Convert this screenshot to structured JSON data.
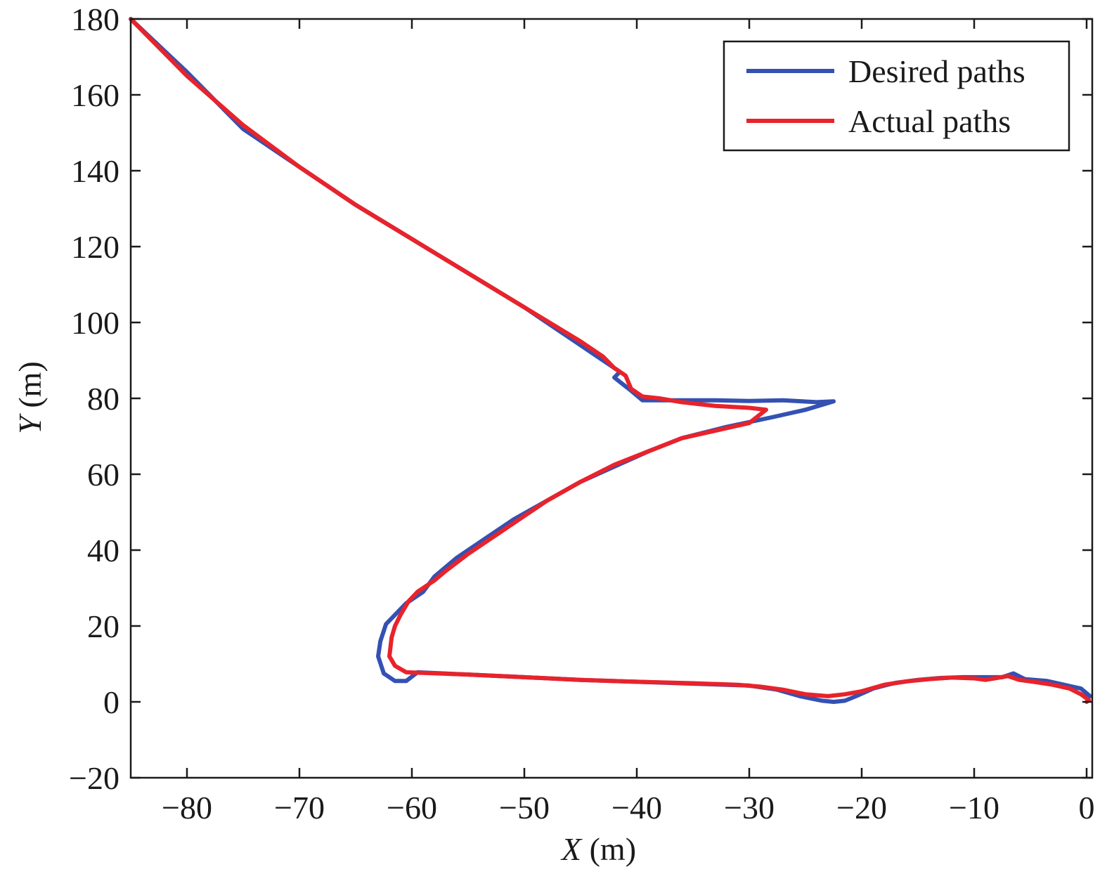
{
  "chart_data": {
    "type": "line",
    "xlabel": {
      "var": "X",
      "unit": " (m)"
    },
    "ylabel": {
      "var": "Y",
      "unit": " (m)"
    },
    "xlim": [
      -85,
      0.5
    ],
    "ylim": [
      -20,
      180
    ],
    "xticks": [
      -80,
      -70,
      -60,
      -50,
      -40,
      -30,
      -20,
      -10,
      0
    ],
    "yticks": [
      -20,
      0,
      20,
      40,
      60,
      80,
      100,
      120,
      140,
      160,
      180
    ],
    "xtick_labels": [
      "−80",
      "−70",
      "−60",
      "−50",
      "−40",
      "−30",
      "−20",
      "−10",
      "0"
    ],
    "ytick_labels": [
      "−20",
      "0",
      "20",
      "40",
      "60",
      "80",
      "100",
      "120",
      "140",
      "160",
      "180"
    ],
    "grid": false,
    "legend_position": "top-right",
    "series": [
      {
        "name": "Desired paths",
        "color": "#3451b2",
        "points": [
          [
            0.3,
            1.5
          ],
          [
            -0.5,
            3.5
          ],
          [
            -2,
            4.5
          ],
          [
            -3.5,
            5.5
          ],
          [
            -5.5,
            6.0
          ],
          [
            -6.5,
            7.5
          ],
          [
            -7.5,
            6.5
          ],
          [
            -9,
            6.5
          ],
          [
            -11,
            6.5
          ],
          [
            -13,
            6.3
          ],
          [
            -15,
            5.8
          ],
          [
            -17,
            5.0
          ],
          [
            -18,
            4.3
          ],
          [
            -19,
            3.5
          ],
          [
            -20.5,
            1.5
          ],
          [
            -21.5,
            0.3
          ],
          [
            -22.5,
            0
          ],
          [
            -23.5,
            0.3
          ],
          [
            -25.5,
            1.5
          ],
          [
            -27.5,
            3.2
          ],
          [
            -30,
            4.3
          ],
          [
            -35,
            4.8
          ],
          [
            -40,
            5.3
          ],
          [
            -45,
            5.8
          ],
          [
            -50,
            6.5
          ],
          [
            -55,
            7.2
          ],
          [
            -59.5,
            7.8
          ],
          [
            -60.5,
            5.5
          ],
          [
            -61.5,
            5.5
          ],
          [
            -62.5,
            7.5
          ],
          [
            -63,
            12
          ],
          [
            -62.8,
            16
          ],
          [
            -62.3,
            20.5
          ],
          [
            -60.5,
            26
          ],
          [
            -59,
            29
          ],
          [
            -58,
            33
          ],
          [
            -56,
            38
          ],
          [
            -54,
            42
          ],
          [
            -51,
            48
          ],
          [
            -48,
            53
          ],
          [
            -45,
            58
          ],
          [
            -42,
            62
          ],
          [
            -39,
            66
          ],
          [
            -36,
            69.5
          ],
          [
            -32,
            72.5
          ],
          [
            -28,
            75
          ],
          [
            -25,
            77
          ],
          [
            -22.5,
            79.2
          ],
          [
            -24,
            79
          ],
          [
            -27,
            79.5
          ],
          [
            -30,
            79.3
          ],
          [
            -33,
            79.5
          ],
          [
            -38,
            79.5
          ],
          [
            -39.5,
            79.5
          ],
          [
            -40.5,
            82
          ],
          [
            -42,
            85.5
          ],
          [
            -41.5,
            87
          ],
          [
            -42.5,
            89
          ],
          [
            -45,
            94
          ],
          [
            -50,
            104
          ],
          [
            -55,
            113
          ],
          [
            -60,
            122
          ],
          [
            -65,
            131
          ],
          [
            -70,
            141
          ],
          [
            -75,
            151
          ],
          [
            -80,
            166
          ],
          [
            -85,
            180
          ]
        ]
      },
      {
        "name": "Actual paths",
        "color": "#e8232b",
        "points": [
          [
            0,
            0
          ],
          [
            0.2,
            0.5
          ],
          [
            -0.5,
            2
          ],
          [
            -1.5,
            3.5
          ],
          [
            -3,
            4.5
          ],
          [
            -4.5,
            5.2
          ],
          [
            -6,
            5.8
          ],
          [
            -7,
            6.8
          ],
          [
            -8,
            6.3
          ],
          [
            -9,
            5.8
          ],
          [
            -10,
            6.2
          ],
          [
            -12,
            6.4
          ],
          [
            -14,
            6.0
          ],
          [
            -16,
            5.4
          ],
          [
            -18,
            4.5
          ],
          [
            -20,
            2.8
          ],
          [
            -21.5,
            2.0
          ],
          [
            -23,
            1.5
          ],
          [
            -25,
            2.0
          ],
          [
            -27,
            3.2
          ],
          [
            -29,
            4.0
          ],
          [
            -31,
            4.5
          ],
          [
            -35,
            4.9
          ],
          [
            -40,
            5.3
          ],
          [
            -45,
            5.8
          ],
          [
            -50,
            6.5
          ],
          [
            -55,
            7.2
          ],
          [
            -60.5,
            7.8
          ],
          [
            -61.5,
            9.5
          ],
          [
            -62,
            12
          ],
          [
            -61.8,
            17
          ],
          [
            -61.5,
            20
          ],
          [
            -61,
            23
          ],
          [
            -60.3,
            26.5
          ],
          [
            -59.5,
            29
          ],
          [
            -58,
            32
          ],
          [
            -57,
            34.5
          ],
          [
            -55,
            39
          ],
          [
            -53,
            43
          ],
          [
            -51,
            47
          ],
          [
            -48,
            53
          ],
          [
            -45,
            58
          ],
          [
            -42,
            62.5
          ],
          [
            -39,
            66
          ],
          [
            -36,
            69.5
          ],
          [
            -33,
            71.5
          ],
          [
            -30,
            73.5
          ],
          [
            -28.5,
            77
          ],
          [
            -30,
            77.5
          ],
          [
            -33,
            78
          ],
          [
            -36,
            79
          ],
          [
            -38,
            80
          ],
          [
            -39.5,
            80.5
          ],
          [
            -40.5,
            82.5
          ],
          [
            -41,
            86
          ],
          [
            -42,
            88
          ],
          [
            -43,
            91
          ],
          [
            -45,
            95
          ],
          [
            -50,
            104
          ],
          [
            -55,
            113
          ],
          [
            -60,
            122
          ],
          [
            -65,
            131
          ],
          [
            -70,
            141
          ],
          [
            -75,
            152
          ],
          [
            -80,
            165
          ],
          [
            -85,
            180
          ]
        ]
      }
    ]
  }
}
